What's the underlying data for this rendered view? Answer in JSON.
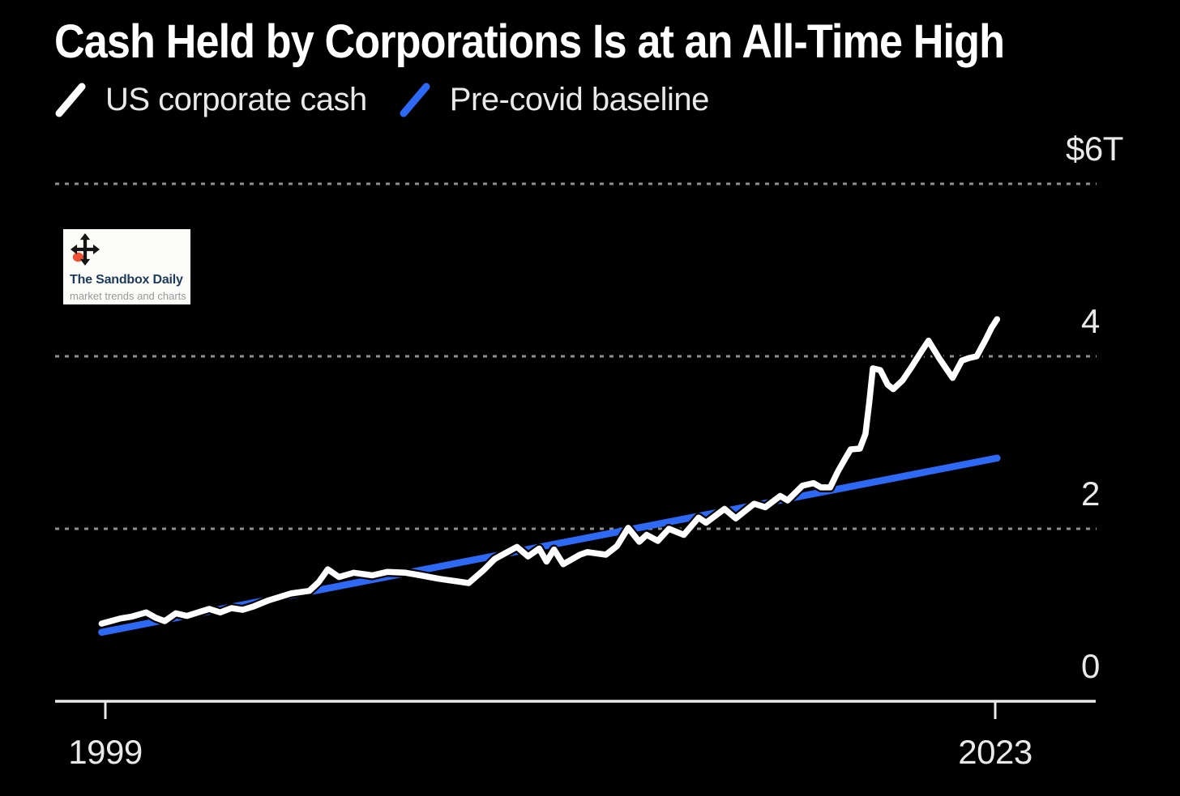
{
  "header": {
    "title": "Cash Held by Corporations Is at an All-Time High"
  },
  "legend": [
    {
      "label": "US corporate cash",
      "color": "#ffffff"
    },
    {
      "label": "Pre-covid baseline",
      "color": "#2d69f5"
    }
  ],
  "watermark": {
    "title": "The Sandbox Daily",
    "subtitle": "market trends and charts",
    "icon": "move-icon",
    "icon_arrow_color": "#151515",
    "icon_accent_color": "#f05033"
  },
  "colors": {
    "background": "#000000",
    "grid": "#8f8f8f",
    "axis": "#e9e9e9",
    "tick_text": "#e9e9e9",
    "title_text": "#ffffff",
    "us_cash_line": "#ffffff",
    "baseline_line": "#2d69f5"
  },
  "chart_data": {
    "type": "line",
    "title": "Cash Held by Corporations Is at an All-Time High",
    "units": "trillions of US dollars",
    "xlim": [
      1998.9,
      2023.3
    ],
    "ylim": [
      0,
      6.2
    ],
    "grid": "horizontal-dashed",
    "legend_position": "top-left",
    "y_ticks": [
      {
        "label": "$6T",
        "value": 6
      },
      {
        "label": "4",
        "value": 4
      },
      {
        "label": "2",
        "value": 2
      },
      {
        "label": "0",
        "value": 0
      }
    ],
    "x_ticks": [
      {
        "label": "1999",
        "year": 1999
      },
      {
        "label": "2023",
        "year": 2023
      }
    ],
    "series": [
      {
        "name": "US corporate cash",
        "color": "#ffffff",
        "points": [
          [
            1998.9,
            0.9
          ],
          [
            1999.15,
            0.93
          ],
          [
            1999.4,
            0.96
          ],
          [
            1999.7,
            0.98
          ],
          [
            2000.1,
            1.03
          ],
          [
            2000.35,
            0.97
          ],
          [
            2000.6,
            0.93
          ],
          [
            2000.9,
            1.02
          ],
          [
            2001.2,
            0.99
          ],
          [
            2001.8,
            1.07
          ],
          [
            2002.1,
            1.03
          ],
          [
            2002.4,
            1.08
          ],
          [
            2002.7,
            1.06
          ],
          [
            2003.0,
            1.1
          ],
          [
            2003.4,
            1.17
          ],
          [
            2004.0,
            1.25
          ],
          [
            2004.5,
            1.28
          ],
          [
            2004.75,
            1.38
          ],
          [
            2005.0,
            1.53
          ],
          [
            2005.3,
            1.44
          ],
          [
            2005.7,
            1.49
          ],
          [
            2006.2,
            1.46
          ],
          [
            2006.6,
            1.5
          ],
          [
            2007.1,
            1.49
          ],
          [
            2007.5,
            1.46
          ],
          [
            2008.0,
            1.42
          ],
          [
            2008.5,
            1.39
          ],
          [
            2008.8,
            1.37
          ],
          [
            2009.2,
            1.52
          ],
          [
            2009.5,
            1.65
          ],
          [
            2009.8,
            1.72
          ],
          [
            2010.1,
            1.79
          ],
          [
            2010.4,
            1.68
          ],
          [
            2010.7,
            1.77
          ],
          [
            2010.9,
            1.62
          ],
          [
            2011.1,
            1.76
          ],
          [
            2011.35,
            1.59
          ],
          [
            2011.8,
            1.7
          ],
          [
            2012.0,
            1.73
          ],
          [
            2012.5,
            1.7
          ],
          [
            2012.8,
            1.8
          ],
          [
            2013.1,
            2.01
          ],
          [
            2013.4,
            1.85
          ],
          [
            2013.6,
            1.93
          ],
          [
            2013.9,
            1.86
          ],
          [
            2014.2,
            2.0
          ],
          [
            2014.6,
            1.93
          ],
          [
            2015.0,
            2.13
          ],
          [
            2015.2,
            2.07
          ],
          [
            2015.7,
            2.23
          ],
          [
            2016.0,
            2.12
          ],
          [
            2016.5,
            2.29
          ],
          [
            2016.8,
            2.25
          ],
          [
            2017.2,
            2.38
          ],
          [
            2017.4,
            2.33
          ],
          [
            2017.8,
            2.5
          ],
          [
            2018.1,
            2.53
          ],
          [
            2018.3,
            2.48
          ],
          [
            2018.55,
            2.48
          ],
          [
            2018.75,
            2.66
          ],
          [
            2018.95,
            2.81
          ],
          [
            2019.1,
            2.92
          ],
          [
            2019.35,
            2.93
          ],
          [
            2019.5,
            3.1
          ],
          [
            2019.6,
            3.45
          ],
          [
            2019.7,
            3.86
          ],
          [
            2019.9,
            3.84
          ],
          [
            2020.1,
            3.67
          ],
          [
            2020.25,
            3.62
          ],
          [
            2020.5,
            3.72
          ],
          [
            2020.75,
            3.88
          ],
          [
            2021.0,
            4.05
          ],
          [
            2021.2,
            4.18
          ],
          [
            2021.5,
            3.97
          ],
          [
            2021.85,
            3.75
          ],
          [
            2022.1,
            3.95
          ],
          [
            2022.3,
            3.98
          ],
          [
            2022.5,
            4.0
          ],
          [
            2022.75,
            4.2
          ],
          [
            2022.9,
            4.33
          ],
          [
            2023.05,
            4.43
          ]
        ]
      },
      {
        "name": "Pre-covid baseline",
        "color": "#2d69f5",
        "points": [
          [
            1998.9,
            0.8
          ],
          [
            2023.05,
            2.82
          ]
        ]
      }
    ]
  }
}
